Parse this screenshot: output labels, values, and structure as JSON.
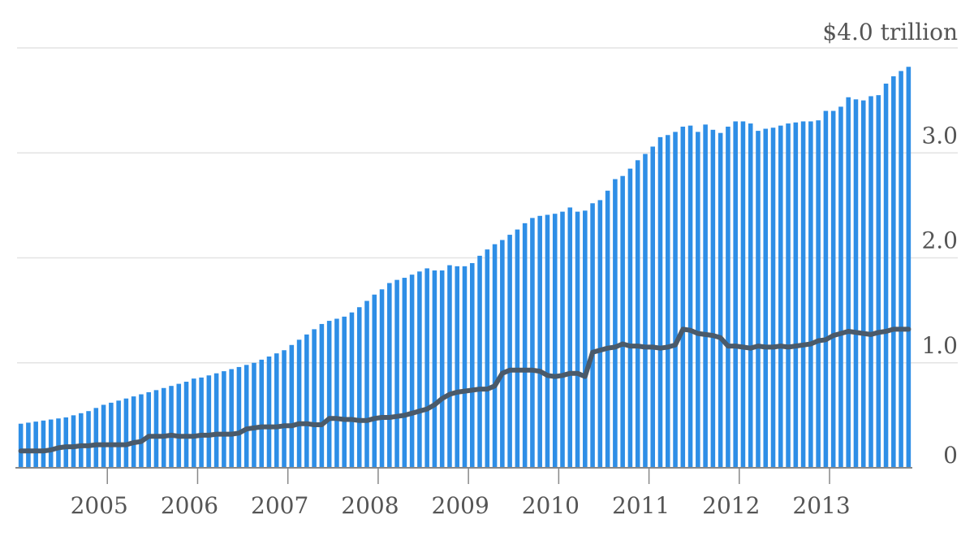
{
  "chart_data": {
    "type": "bar",
    "title": "",
    "xlabel": "",
    "ylabel": "",
    "ylim": [
      0,
      4.0
    ],
    "yticks": [
      {
        "value": 0,
        "label": "0"
      },
      {
        "value": 1.0,
        "label": "1.0"
      },
      {
        "value": 2.0,
        "label": "2.0"
      },
      {
        "value": 3.0,
        "label": "3.0"
      },
      {
        "value": 4.0,
        "label": "$4.0 trillion"
      }
    ],
    "xticks": [
      "2005",
      "2006",
      "2007",
      "2008",
      "2009",
      "2010",
      "2011",
      "2012",
      "2013"
    ],
    "x_start": "2004-01",
    "x_end": "2013-10",
    "grid": true,
    "colors": {
      "bars": "#2e8ee6",
      "line": "#4a5a6a",
      "grid": "#e3e3e3",
      "axis": "#888888",
      "text": "#555555"
    },
    "series": [
      {
        "kind": "bar",
        "values": [
          0.42,
          0.43,
          0.44,
          0.45,
          0.46,
          0.47,
          0.48,
          0.5,
          0.52,
          0.54,
          0.57,
          0.6,
          0.62,
          0.64,
          0.66,
          0.68,
          0.7,
          0.72,
          0.74,
          0.76,
          0.78,
          0.8,
          0.82,
          0.85,
          0.86,
          0.88,
          0.9,
          0.92,
          0.94,
          0.96,
          0.98,
          1.0,
          1.03,
          1.06,
          1.09,
          1.12,
          1.17,
          1.22,
          1.27,
          1.32,
          1.37,
          1.4,
          1.42,
          1.44,
          1.48,
          1.53,
          1.59,
          1.65,
          1.7,
          1.76,
          1.79,
          1.81,
          1.84,
          1.87,
          1.9,
          1.88,
          1.88,
          1.93,
          1.92,
          1.92,
          1.95,
          2.02,
          2.08,
          2.13,
          2.17,
          2.22,
          2.27,
          2.33,
          2.38,
          2.4,
          2.41,
          2.42,
          2.44,
          2.48,
          2.44,
          2.45,
          2.52,
          2.55,
          2.64,
          2.75,
          2.78,
          2.85,
          2.93,
          2.99,
          3.06,
          3.15,
          3.17,
          3.2,
          3.25,
          3.26,
          3.2,
          3.27,
          3.22,
          3.19,
          3.25,
          3.3,
          3.3,
          3.28,
          3.21,
          3.23,
          3.24,
          3.26,
          3.28,
          3.29,
          3.3,
          3.3,
          3.31,
          3.4,
          3.4,
          3.44,
          3.53,
          3.51,
          3.5,
          3.54,
          3.55,
          3.66,
          3.73,
          3.78,
          3.82
        ]
      },
      {
        "kind": "line",
        "values": [
          0.16,
          0.16,
          0.16,
          0.16,
          0.17,
          0.19,
          0.2,
          0.2,
          0.21,
          0.21,
          0.22,
          0.22,
          0.22,
          0.22,
          0.22,
          0.24,
          0.25,
          0.3,
          0.3,
          0.3,
          0.31,
          0.3,
          0.3,
          0.3,
          0.31,
          0.31,
          0.32,
          0.32,
          0.32,
          0.33,
          0.37,
          0.38,
          0.39,
          0.39,
          0.39,
          0.4,
          0.4,
          0.42,
          0.42,
          0.41,
          0.41,
          0.47,
          0.47,
          0.46,
          0.46,
          0.45,
          0.45,
          0.47,
          0.48,
          0.48,
          0.49,
          0.5,
          0.52,
          0.54,
          0.56,
          0.6,
          0.66,
          0.7,
          0.72,
          0.73,
          0.74,
          0.75,
          0.75,
          0.78,
          0.9,
          0.93,
          0.93,
          0.93,
          0.93,
          0.92,
          0.88,
          0.87,
          0.88,
          0.9,
          0.9,
          0.87,
          1.1,
          1.12,
          1.14,
          1.15,
          1.18,
          1.16,
          1.16,
          1.15,
          1.15,
          1.14,
          1.15,
          1.17,
          1.32,
          1.31,
          1.28,
          1.27,
          1.26,
          1.24,
          1.16,
          1.16,
          1.15,
          1.14,
          1.16,
          1.15,
          1.15,
          1.16,
          1.15,
          1.16,
          1.17,
          1.18,
          1.21,
          1.22,
          1.26,
          1.28,
          1.3,
          1.29,
          1.28,
          1.27,
          1.29,
          1.3,
          1.32,
          1.32,
          1.32
        ]
      }
    ]
  }
}
